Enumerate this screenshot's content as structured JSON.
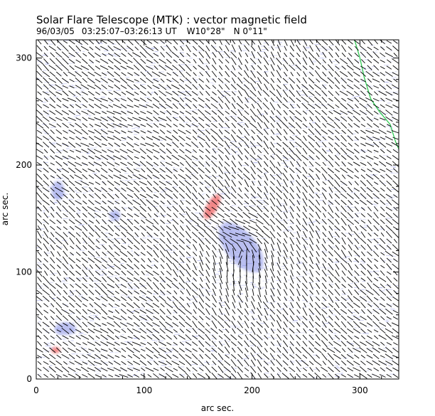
{
  "chart_data": {
    "type": "vector-field-map",
    "title": "Solar Flare Telescope (MTK) : vector magnetic field",
    "subtitle_parts": [
      "96/03/05",
      "03:25:07–03:26:13 UT",
      "W10°28\"",
      "N 0°11\""
    ],
    "xlabel": "arc sec.",
    "ylabel": "arc sec.",
    "xlim": [
      0,
      336
    ],
    "ylim": [
      0,
      317
    ],
    "xticks": [
      0,
      100,
      200,
      300
    ],
    "yticks": [
      0,
      100,
      200,
      300
    ],
    "vector_spacing_arcsec": 6,
    "colors": {
      "negative_polarity": "#6670dd",
      "positive_polarity": "#ee6060",
      "neutral_line": "#33cc55",
      "vectors": "#000000",
      "axes": "#000000"
    },
    "regions": [
      {
        "polarity": "negative",
        "cx": 190,
        "cy": 123,
        "rx": 14,
        "ry": 28,
        "rotation": -40
      },
      {
        "polarity": "negative",
        "cx": 27,
        "cy": 47,
        "rx": 10,
        "ry": 6,
        "rotation": 0
      },
      {
        "polarity": "negative",
        "cx": 20,
        "cy": 176,
        "rx": 6,
        "ry": 9,
        "rotation": 0
      },
      {
        "polarity": "negative",
        "cx": 73,
        "cy": 153,
        "rx": 5,
        "ry": 5,
        "rotation": 0
      },
      {
        "polarity": "positive",
        "cx": 163,
        "cy": 161,
        "rx": 5,
        "ry": 13,
        "rotation": 30
      },
      {
        "polarity": "positive",
        "cx": 18,
        "cy": 27,
        "rx": 4,
        "ry": 3,
        "rotation": 0
      }
    ],
    "neutral_line": [
      [
        295,
        317
      ],
      [
        300,
        300
      ],
      [
        304,
        282
      ],
      [
        310,
        262
      ],
      [
        318,
        250
      ],
      [
        328,
        238
      ],
      [
        333,
        222
      ],
      [
        336,
        215
      ]
    ]
  }
}
